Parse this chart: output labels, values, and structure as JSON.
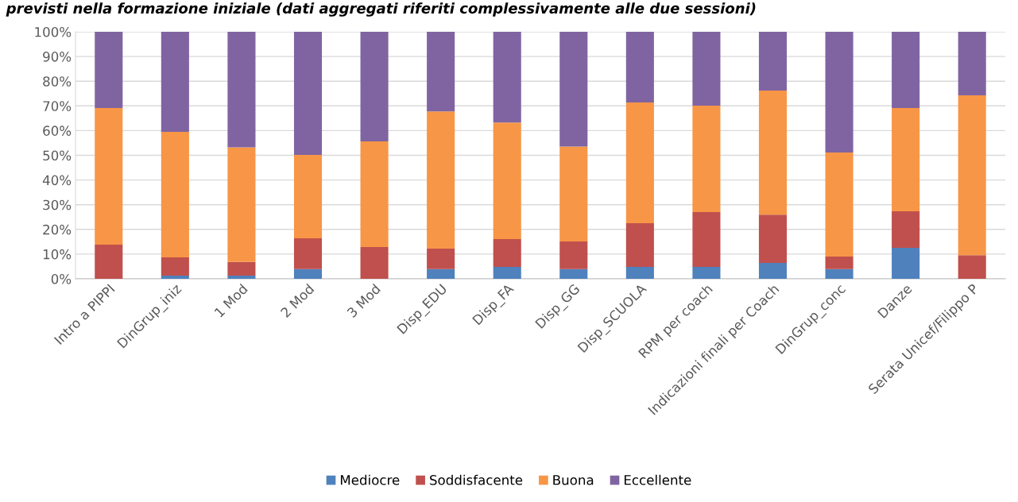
{
  "chart_data": {
    "type": "bar",
    "stacked": true,
    "title": "previsti nella formazione iniziale (dati aggregati riferiti complessivamente alle due sessioni)",
    "categories": [
      "Intro a PIPPI",
      "DinGrup_iniz",
      "1 Mod",
      "2 Mod",
      "3 Mod",
      "Disp_EDU",
      "Disp_FA",
      "Disp_GG",
      "Disp_SCUOLA",
      "RPM per coach",
      "Indicazioni finali per Coach",
      "DinGrup_conc",
      "Danze",
      "Serata Unicef/Filippo P"
    ],
    "series": [
      {
        "name": "Mediocre",
        "color": "#4f81bd",
        "values": [
          0,
          1.3,
          1.3,
          3.9,
          0,
          3.9,
          4.8,
          3.9,
          4.8,
          4.8,
          6.4,
          3.9,
          12.5,
          0
        ]
      },
      {
        "name": "Soddisfacente",
        "color": "#c0504d",
        "values": [
          13.8,
          7.4,
          5.5,
          12.5,
          12.9,
          8.3,
          11.3,
          11.2,
          17.7,
          22.2,
          19.6,
          5.1,
          14.8,
          9.6
        ]
      },
      {
        "name": "Buona",
        "color": "#f79646",
        "values": [
          55.3,
          50.8,
          46.4,
          33.8,
          42.7,
          55.6,
          47.2,
          38.4,
          48.9,
          43.1,
          50.2,
          42.1,
          41.8,
          64.7
        ]
      },
      {
        "name": "Eccellente",
        "color": "#8064a2",
        "values": [
          30.9,
          40.5,
          46.8,
          49.8,
          44.4,
          32.2,
          36.7,
          46.5,
          28.6,
          29.9,
          23.8,
          48.9,
          30.9,
          25.7
        ]
      }
    ],
    "ylim": [
      0,
      100
    ],
    "yticks": [
      {
        "value": 0,
        "label": "0%"
      },
      {
        "value": 10,
        "label": "10%"
      },
      {
        "value": 20,
        "label": "20%"
      },
      {
        "value": 30,
        "label": "30%"
      },
      {
        "value": 40,
        "label": "40%"
      },
      {
        "value": 50,
        "label": "50%"
      },
      {
        "value": 60,
        "label": "60%"
      },
      {
        "value": 70,
        "label": "70%"
      },
      {
        "value": 80,
        "label": "80%"
      },
      {
        "value": 90,
        "label": "90%"
      },
      {
        "value": 100,
        "label": "100%"
      }
    ],
    "grid": "y",
    "legend": "bottom"
  }
}
